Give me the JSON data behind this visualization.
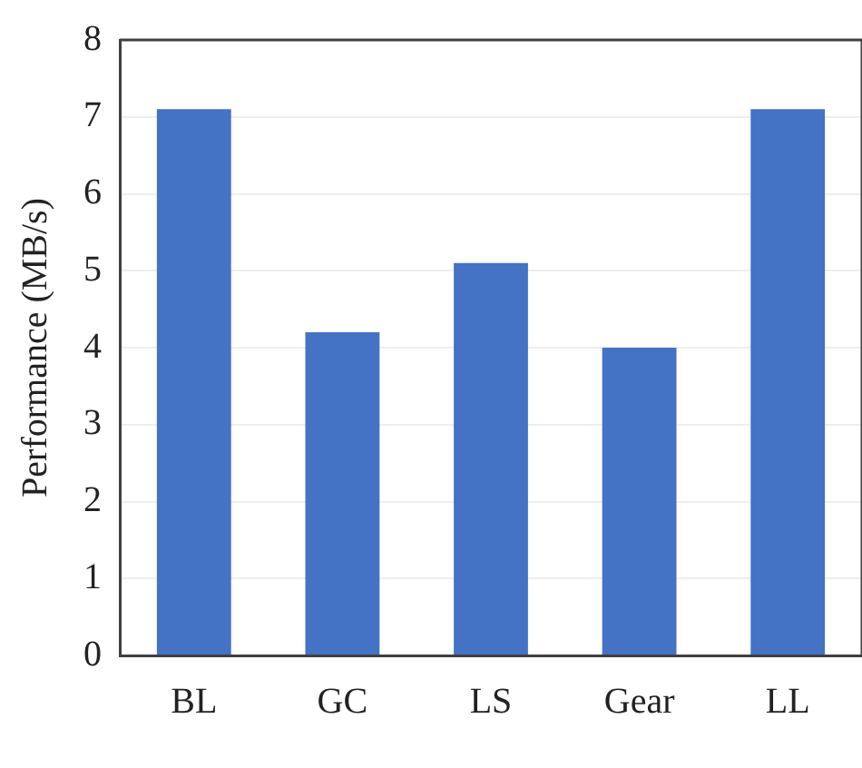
{
  "chart_data": {
    "type": "bar",
    "ylabel": "Performance (MB/s)",
    "categories": [
      "BL",
      "GC",
      "LS",
      "Gear",
      "LL"
    ],
    "values": [
      7.1,
      4.2,
      5.1,
      4.0,
      7.1
    ],
    "color": "#4472c4",
    "ylim": [
      0,
      8
    ],
    "yticks": [
      0,
      1,
      2,
      3,
      4,
      5,
      6,
      7,
      8
    ],
    "grid": "y",
    "legend": false
  }
}
